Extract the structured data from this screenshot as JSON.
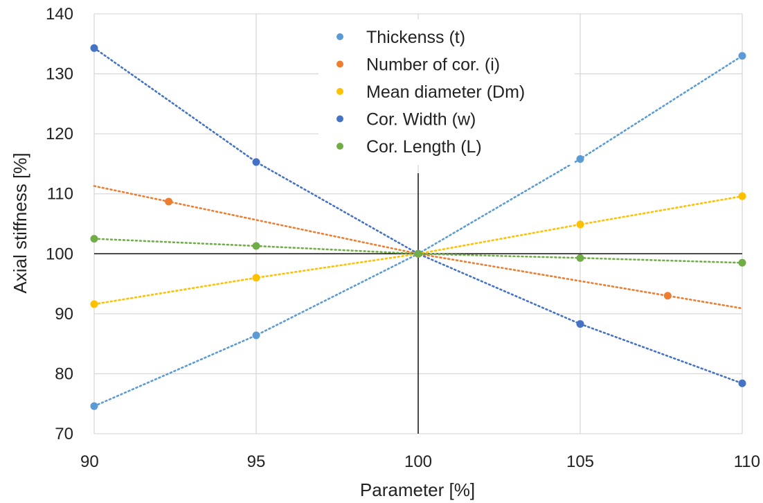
{
  "chart_data": {
    "type": "scatter",
    "xlabel": "Parameter [%]",
    "ylabel": "Axial stiffness [%]",
    "xlim": [
      90,
      110
    ],
    "ylim": [
      70,
      140
    ],
    "xticks": [
      90,
      95,
      100,
      105,
      110
    ],
    "yticks": [
      70,
      80,
      90,
      100,
      110,
      120,
      130,
      140
    ],
    "grid": true,
    "legend_position": "top-center",
    "reference_lines": {
      "x": 100,
      "y": 100
    },
    "series": [
      {
        "name": "Thickenss (t)",
        "color": "#5B9BD5",
        "trendline": "dotted",
        "points": [
          [
            90,
            74.6
          ],
          [
            95,
            86.4
          ],
          [
            100,
            100.0
          ],
          [
            105,
            115.8
          ],
          [
            110,
            133.0
          ]
        ]
      },
      {
        "name": "Number of cor. (i)",
        "color": "#ED7D31",
        "trendline": "dotted",
        "points": [
          [
            92.3,
            108.7
          ],
          [
            100,
            100.0
          ],
          [
            107.7,
            93.0
          ]
        ],
        "trend_ends": [
          [
            90,
            111.3
          ],
          [
            110,
            90.9
          ]
        ]
      },
      {
        "name": "Mean diameter (Dm)",
        "color": "#FFC000",
        "trendline": "dotted",
        "points": [
          [
            90,
            91.6
          ],
          [
            95,
            96.0
          ],
          [
            100,
            100.0
          ],
          [
            105,
            104.9
          ],
          [
            110,
            109.6
          ]
        ]
      },
      {
        "name": "Cor. Width (w)",
        "color": "#4472C4",
        "trendline": "dotted",
        "points": [
          [
            90,
            134.3
          ],
          [
            95,
            115.3
          ],
          [
            100,
            100.0
          ],
          [
            105,
            88.3
          ],
          [
            110,
            78.4
          ]
        ]
      },
      {
        "name": "Cor. Length (L)",
        "color": "#70AD47",
        "trendline": "dotted",
        "points": [
          [
            90,
            102.5
          ],
          [
            95,
            101.3
          ],
          [
            100,
            100.0
          ],
          [
            105,
            99.3
          ],
          [
            110,
            98.5
          ]
        ]
      }
    ]
  }
}
